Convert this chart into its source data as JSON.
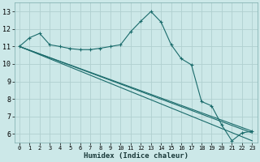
{
  "xlabel": "Humidex (Indice chaleur)",
  "background_color": "#cce8e8",
  "grid_color": "#b0d0d0",
  "line_color": "#1a6b6b",
  "xlim": [
    -0.5,
    23.5
  ],
  "ylim": [
    5.5,
    13.5
  ],
  "xticks": [
    0,
    1,
    2,
    3,
    4,
    5,
    6,
    7,
    8,
    9,
    10,
    11,
    12,
    13,
    14,
    15,
    16,
    17,
    18,
    19,
    20,
    21,
    22,
    23
  ],
  "yticks": [
    6,
    7,
    8,
    9,
    10,
    11,
    12,
    13
  ],
  "line1_x": [
    0,
    1,
    2,
    3,
    4,
    5,
    6,
    7,
    8,
    9,
    10,
    11,
    12,
    13,
    14,
    15,
    16,
    17,
    18,
    19,
    20,
    21,
    22,
    23
  ],
  "line1_y": [
    11.0,
    11.5,
    11.75,
    11.1,
    11.0,
    10.88,
    10.82,
    10.82,
    10.9,
    11.0,
    11.1,
    11.85,
    12.45,
    13.0,
    12.4,
    11.1,
    10.3,
    9.95,
    7.85,
    7.6,
    6.5,
    5.6,
    6.05,
    6.15
  ],
  "line2_x": [
    0,
    23
  ],
  "line2_y": [
    11.0,
    6.15
  ],
  "line3_x": [
    0,
    23
  ],
  "line3_y": [
    11.0,
    6.05
  ],
  "line4_x": [
    0,
    23
  ],
  "line4_y": [
    11.0,
    5.6
  ]
}
